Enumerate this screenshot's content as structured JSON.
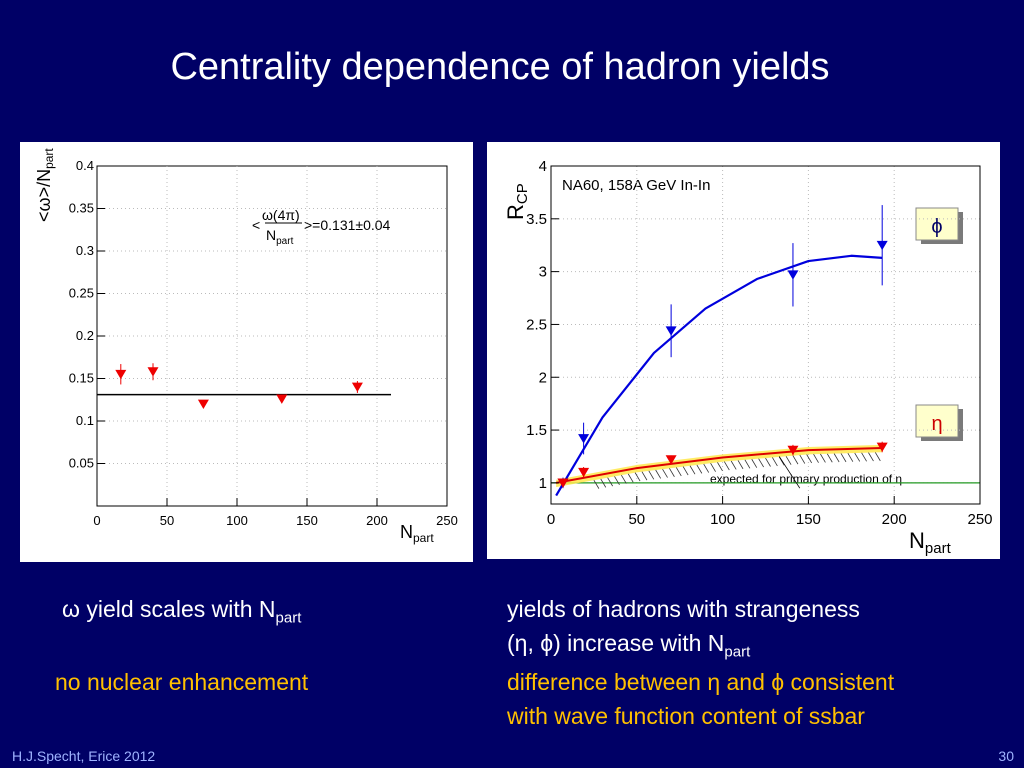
{
  "slide": {
    "title": "Centrality dependence of hadron yields",
    "footer_left": "H.J.Specht, Erice 2012",
    "page_number": "30"
  },
  "text": {
    "left_line1_symbol": "ω",
    "left_line1": "yield scales with N",
    "left_line1_sub": "part",
    "left_line2": "no nuclear enhancement",
    "right_line1": "yields of hadrons with strangeness",
    "right_line2": "(η, ϕ)  increase with N",
    "right_line2_sub": "part",
    "right_line3": "difference between η and ϕ consistent",
    "right_line4": "with wave function content of ssbar"
  },
  "colors": {
    "background": "#000066",
    "accent_orange": "#ffc000",
    "phi_blue": "#0000dd",
    "eta_red": "#ee0000"
  },
  "chart_data": [
    {
      "type": "scatter",
      "title": "",
      "ylabel": "<ω>/N",
      "ylabel_sub": "part",
      "xlabel": "N",
      "xlabel_sub": "part",
      "xlim": [
        0,
        250
      ],
      "ylim": [
        0,
        0.4
      ],
      "xticks": [
        "0",
        "50",
        "100",
        "150",
        "200",
        "250"
      ],
      "yticks": [
        "0.05",
        "0.1",
        "0.15",
        "0.2",
        "0.25",
        "0.3",
        "0.35",
        "0.4"
      ],
      "annotation_numerator": "ω(4π)",
      "annotation_lt": "<",
      "annotation_denominator": "N",
      "annotation_denominator_sub": "part",
      "annotation_value": ">=0.131±0.04",
      "fit_line": {
        "y": 0.131,
        "x_start": 0,
        "x_end": 210
      },
      "series": [
        {
          "name": "omega",
          "x": [
            17,
            40,
            76,
            132,
            186
          ],
          "y": [
            0.155,
            0.158,
            0.12,
            0.126,
            0.14
          ],
          "err": [
            0.012,
            0.01,
            0.004,
            0.004,
            0.007
          ]
        }
      ]
    },
    {
      "type": "scatter",
      "title": "NA60, 158A GeV In-In",
      "ylabel": "R",
      "ylabel_sub": "CP",
      "xlabel": "N",
      "xlabel_sub": "part",
      "xlim": [
        0,
        250
      ],
      "ylim": [
        0.8,
        4.0
      ],
      "xticks": [
        "0",
        "50",
        "100",
        "150",
        "200",
        "250"
      ],
      "yticks": [
        "1",
        "1.5",
        "2",
        "2.5",
        "3",
        "3.5",
        "4"
      ],
      "annotation": "expected for primary production of η",
      "reference_line": 1.0,
      "series": [
        {
          "name": "ϕ",
          "x": [
            7,
            19,
            70,
            141,
            193
          ],
          "y": [
            1.0,
            1.42,
            2.44,
            2.97,
            3.25
          ],
          "err": [
            0.05,
            0.15,
            0.25,
            0.3,
            0.38
          ]
        },
        {
          "name": "η",
          "x": [
            7,
            19,
            70,
            141,
            193
          ],
          "y": [
            1.0,
            1.1,
            1.22,
            1.31,
            1.34
          ],
          "err": [
            0.03,
            0.05,
            0.04,
            0.05,
            0.05
          ]
        }
      ],
      "phi_fit": {
        "x": [
          3,
          30,
          60,
          90,
          120,
          150,
          175,
          193
        ],
        "y": [
          0.88,
          1.62,
          2.23,
          2.65,
          2.93,
          3.1,
          3.15,
          3.13
        ]
      },
      "eta_fit": {
        "x": [
          3,
          50,
          100,
          150,
          193
        ],
        "y": [
          1.0,
          1.14,
          1.24,
          1.31,
          1.33
        ]
      },
      "legend_phi": "ϕ",
      "legend_eta": "η"
    }
  ]
}
